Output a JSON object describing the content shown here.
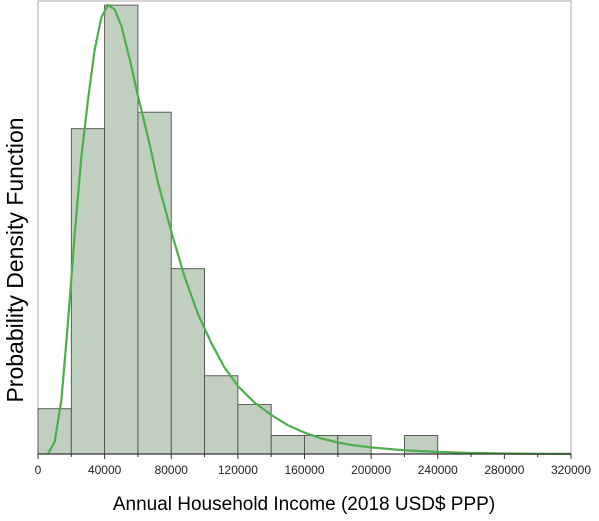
{
  "chart_data": {
    "type": "bar",
    "subtype": "histogram_with_density_curve",
    "xlabel": "Annual Household Income (2018 USD$ PPP)",
    "ylabel": "Probability Density Function",
    "xlim": [
      0,
      320000
    ],
    "ylim": [
      0,
      1.1
    ],
    "x_ticks": [
      "0",
      "40000",
      "80000",
      "120000",
      "160000",
      "200000",
      "240000",
      "280000",
      "320000"
    ],
    "x_tick_values": [
      0,
      40000,
      80000,
      120000,
      160000,
      200000,
      240000,
      280000,
      320000
    ],
    "y_ticks_shown": false,
    "grid": false,
    "legend": "none",
    "bins": [
      {
        "x0": 0,
        "x1": 20000,
        "value": 0.11
      },
      {
        "x0": 20000,
        "x1": 40000,
        "value": 0.79
      },
      {
        "x0": 40000,
        "x1": 60000,
        "value": 1.09
      },
      {
        "x0": 60000,
        "x1": 80000,
        "value": 0.83
      },
      {
        "x0": 80000,
        "x1": 100000,
        "value": 0.45
      },
      {
        "x0": 100000,
        "x1": 120000,
        "value": 0.19
      },
      {
        "x0": 120000,
        "x1": 140000,
        "value": 0.12
      },
      {
        "x0": 140000,
        "x1": 160000,
        "value": 0.045
      },
      {
        "x0": 160000,
        "x1": 180000,
        "value": 0.045
      },
      {
        "x0": 180000,
        "x1": 200000,
        "value": 0.045
      },
      {
        "x0": 200000,
        "x1": 220000,
        "value": 0.0
      },
      {
        "x0": 220000,
        "x1": 240000,
        "value": 0.045
      }
    ],
    "curve": {
      "kind": "fitted density",
      "points": [
        [
          6000,
          0.0
        ],
        [
          10000,
          0.03
        ],
        [
          14000,
          0.13
        ],
        [
          18000,
          0.32
        ],
        [
          22000,
          0.53
        ],
        [
          26000,
          0.72
        ],
        [
          30000,
          0.86
        ],
        [
          34000,
          0.98
        ],
        [
          38000,
          1.06
        ],
        [
          42000,
          1.09
        ],
        [
          46000,
          1.08
        ],
        [
          50000,
          1.04
        ],
        [
          55000,
          0.96
        ],
        [
          60000,
          0.87
        ],
        [
          66000,
          0.77
        ],
        [
          72000,
          0.66
        ],
        [
          80000,
          0.54
        ],
        [
          88000,
          0.43
        ],
        [
          96000,
          0.34
        ],
        [
          104000,
          0.27
        ],
        [
          112000,
          0.21
        ],
        [
          120000,
          0.165
        ],
        [
          130000,
          0.125
        ],
        [
          140000,
          0.095
        ],
        [
          150000,
          0.07
        ],
        [
          160000,
          0.052
        ],
        [
          170000,
          0.038
        ],
        [
          180000,
          0.028
        ],
        [
          190000,
          0.021
        ],
        [
          200000,
          0.016
        ],
        [
          220000,
          0.009
        ],
        [
          240000,
          0.005
        ],
        [
          260000,
          0.0025
        ],
        [
          280000,
          0.0012
        ],
        [
          300000,
          0.0006
        ],
        [
          320000,
          0.0003
        ]
      ]
    },
    "colors": {
      "bar_fill": "#c0cfc0",
      "bar_stroke": "#505050",
      "curve": "#4cae4c",
      "frame": "#a8a8a8",
      "axis": "#333333"
    }
  }
}
